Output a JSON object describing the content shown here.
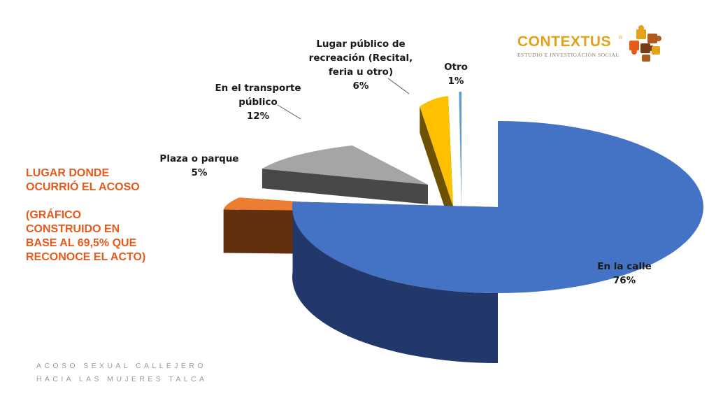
{
  "side_title": {
    "line1": "LUGAR DONDE",
    "line2": "OCURRIÓ EL ACOSO",
    "line3": "(GRÁFICO",
    "line4": "CONSTRUIDO EN",
    "line5": "BASE AL 69,5% QUE",
    "line6": "RECONOCE EL ACTO)"
  },
  "footer": {
    "line1": "ACOSO SEXUAL CALLEJERO",
    "line2": "HACIA LAS MUJERES TALCA"
  },
  "logo": {
    "name": "CONTEXTUS",
    "reg": "®",
    "tagline": "ESTUDIO E INVESTIGACIÓN SOCIAL"
  },
  "chart_data": {
    "type": "pie",
    "style": "3d-exploded",
    "unit": "%",
    "categories": [
      "En la calle",
      "Plaza o parque",
      "En el transporte público",
      "Lugar público de recreación (Recital, feria u otro)",
      "Otro"
    ],
    "values": [
      76,
      5,
      12,
      6,
      1
    ],
    "colors": [
      "#4472C4",
      "#ED7D31",
      "#A5A5A5",
      "#FFC000",
      "#5B9BD5"
    ],
    "side_colors": [
      "#22386A",
      "#63300F",
      "#484848",
      "#6D5200",
      "#2A4F72"
    ],
    "labels": [
      {
        "lines": [
          "En la calle",
          "76%"
        ]
      },
      {
        "lines": [
          "Plaza o parque",
          "5%"
        ]
      },
      {
        "lines": [
          "En el transporte",
          "público",
          "12%"
        ]
      },
      {
        "lines": [
          "Lugar público de",
          "recreación (Recital,",
          "feria u otro)",
          "6%"
        ]
      },
      {
        "lines": [
          "Otro",
          "1%"
        ]
      }
    ]
  }
}
